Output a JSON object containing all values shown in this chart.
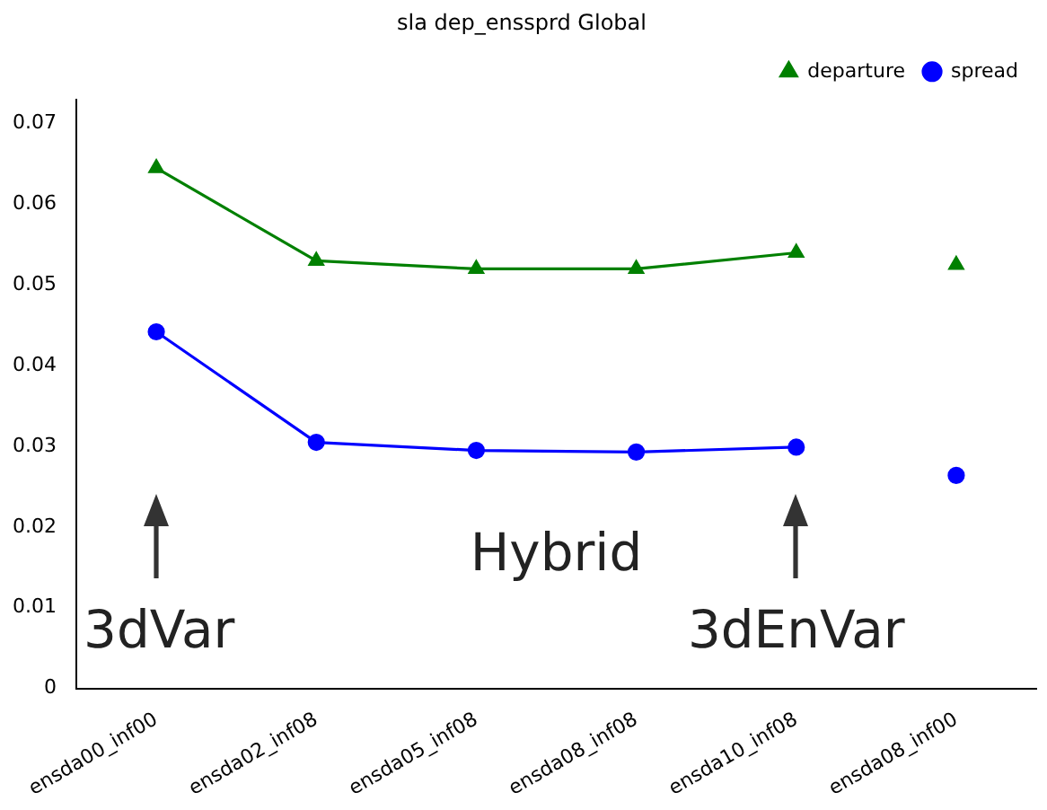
{
  "chart_data": {
    "type": "line",
    "title": "sla dep_enssprd Global",
    "categories": [
      "ensda00_inf00",
      "ensda02_inf08",
      "ensda05_inf08",
      "ensda08_inf08",
      "ensda10_inf08",
      "ensda08_inf00"
    ],
    "ylim": [
      0,
      0.073
    ],
    "yticks": [
      0,
      0.01,
      0.02,
      0.03,
      0.04,
      0.05,
      0.06,
      0.07
    ],
    "series": [
      {
        "name": "departure",
        "color": "#008000",
        "marker": "triangle",
        "values": [
          0.0645,
          0.053,
          0.052,
          0.052,
          0.054,
          null
        ]
      },
      {
        "name": "spread",
        "color": "#0000ff",
        "marker": "circle",
        "values": [
          0.0442,
          0.0305,
          0.0295,
          0.0293,
          0.0299,
          null
        ]
      },
      {
        "type": "scatter",
        "color": "#008000",
        "marker": "triangle",
        "values": [
          null,
          null,
          null,
          null,
          null,
          0.0525
        ]
      },
      {
        "type": "scatter",
        "color": "#0000ff",
        "marker": "circle",
        "values": [
          null,
          null,
          null,
          null,
          null,
          0.0264
        ]
      }
    ],
    "annotations": [
      "3dVar",
      "Hybrid",
      "3dEnVar"
    ],
    "legend": "top right",
    "line_style": "solid"
  }
}
